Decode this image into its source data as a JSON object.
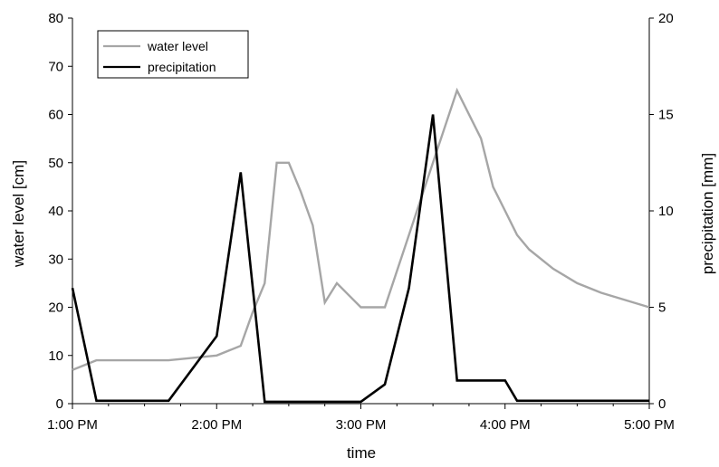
{
  "chart_data": {
    "type": "line",
    "xlabel": "time",
    "ylabel": "water level [cm]",
    "y2label": "precipitation [mm]",
    "x_ticks": [
      "1:00 PM",
      "2:00 PM",
      "3:00 PM",
      "4:00 PM",
      "5:00 PM"
    ],
    "xlim": [
      0,
      240
    ],
    "ylim": [
      0,
      80
    ],
    "y2lim": [
      0,
      20
    ],
    "y_ticks": [
      0,
      10,
      20,
      30,
      40,
      50,
      60,
      70,
      80
    ],
    "y2_ticks": [
      0,
      5,
      10,
      15,
      20
    ],
    "legend": {
      "placement": "top-left"
    },
    "grid": false,
    "series": [
      {
        "name": "water level",
        "axis": "left",
        "color": "#a6a6a6",
        "x_minutes": [
          0,
          10,
          20,
          30,
          40,
          50,
          60,
          70,
          75,
          80,
          85,
          90,
          95,
          100,
          105,
          110,
          115,
          120,
          130,
          140,
          150,
          160,
          170,
          175,
          180,
          185,
          190,
          200,
          210,
          220,
          240
        ],
        "values": [
          7,
          9,
          9,
          9,
          9,
          9.5,
          10,
          12,
          19,
          25,
          50,
          50,
          44,
          37,
          21,
          25,
          22.5,
          20,
          20,
          35,
          50,
          65,
          55,
          45,
          40,
          35,
          32,
          28,
          25,
          23,
          20
        ]
      },
      {
        "name": "precipitation",
        "axis": "right",
        "color": "#000000",
        "x_minutes": [
          0,
          10,
          20,
          30,
          40,
          60,
          70,
          80,
          90,
          100,
          110,
          120,
          130,
          140,
          150,
          160,
          170,
          180,
          185,
          190,
          200,
          210,
          220,
          240
        ],
        "values": [
          6,
          0.15,
          0.15,
          0.15,
          0.15,
          3.5,
          12,
          0.1,
          0.1,
          0.1,
          0.1,
          0.1,
          1,
          6,
          15,
          1.2,
          1.2,
          1.2,
          0.15,
          0.15,
          0.15,
          0.15,
          0.15,
          0.15
        ]
      }
    ]
  }
}
